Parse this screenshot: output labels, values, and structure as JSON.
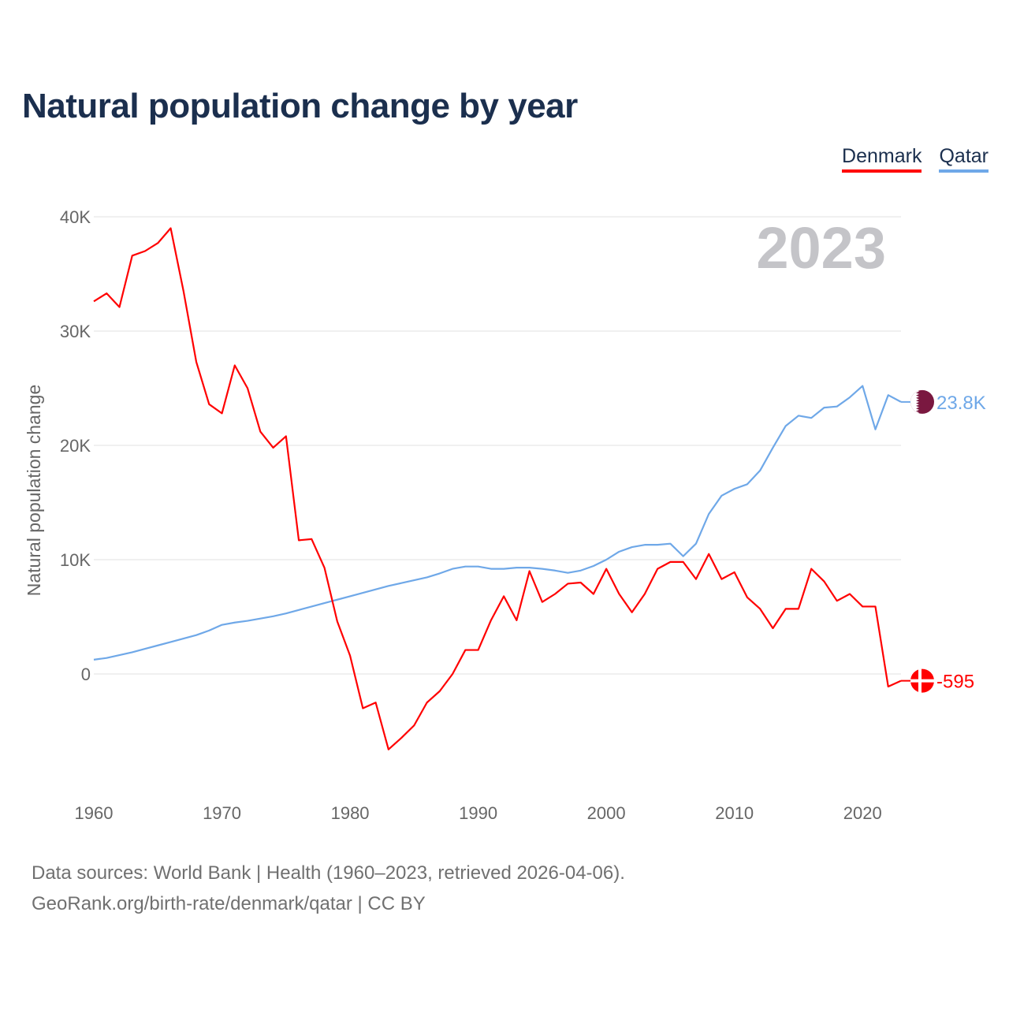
{
  "title": "Natural population change by year",
  "legend": [
    {
      "name": "Denmark",
      "color": "#ff0000"
    },
    {
      "name": "Qatar",
      "color": "#6fa8e8"
    }
  ],
  "year_watermark": "2023",
  "source": {
    "line1": "Data sources: World Bank | Health (1960–2023, retrieved 2026-04-06).",
    "line2": "GeoRank.org/birth-rate/denmark/qatar | CC BY"
  },
  "chart_data": {
    "type": "line",
    "title": "Natural population change by year",
    "xlabel": "",
    "ylabel": "Natural population change",
    "xlim": [
      1960,
      2023
    ],
    "ylim": [
      -10000,
      40000
    ],
    "x_ticks": [
      1960,
      1970,
      1980,
      1990,
      2000,
      2010,
      2020
    ],
    "x_tick_labels": [
      "1960",
      "1970",
      "1980",
      "1990",
      "2000",
      "2010",
      "2020"
    ],
    "y_ticks": [
      0,
      10000,
      20000,
      30000,
      40000
    ],
    "y_tick_labels": [
      "0",
      "10K",
      "20K",
      "30K",
      "40K"
    ],
    "grid": true,
    "legend_position": "top-right",
    "x": [
      1960,
      1961,
      1962,
      1963,
      1964,
      1965,
      1966,
      1967,
      1968,
      1969,
      1970,
      1971,
      1972,
      1973,
      1974,
      1975,
      1976,
      1977,
      1978,
      1979,
      1980,
      1981,
      1982,
      1983,
      1984,
      1985,
      1986,
      1987,
      1988,
      1989,
      1990,
      1991,
      1992,
      1993,
      1994,
      1995,
      1996,
      1997,
      1998,
      1999,
      2000,
      2001,
      2002,
      2003,
      2004,
      2005,
      2006,
      2007,
      2008,
      2009,
      2010,
      2011,
      2012,
      2013,
      2014,
      2015,
      2016,
      2017,
      2018,
      2019,
      2020,
      2021,
      2022,
      2023
    ],
    "series": [
      {
        "name": "Denmark",
        "color": "#ff0000",
        "end_label": "-595",
        "values": [
          32600,
          33300,
          32100,
          36600,
          37000,
          37700,
          39000,
          33500,
          27300,
          23600,
          22800,
          27000,
          25000,
          21200,
          19800,
          20800,
          11700,
          11800,
          9300,
          4600,
          1600,
          -3000,
          -2500,
          -6600,
          -5600,
          -4500,
          -2500,
          -1500,
          0,
          2100,
          2100,
          4700,
          6800,
          4700,
          9000,
          6300,
          7000,
          7900,
          8000,
          7000,
          9200,
          7000,
          5400,
          7000,
          9200,
          9800,
          9800,
          8300,
          10500,
          8300,
          8900,
          6700,
          5700,
          4000,
          5700,
          5700,
          9200,
          8100,
          6400,
          7000,
          5900,
          5900,
          -1100,
          -595
        ]
      },
      {
        "name": "Qatar",
        "color": "#6fa8e8",
        "end_label": "23.8K",
        "values": [
          1250,
          1400,
          1650,
          1900,
          2200,
          2500,
          2800,
          3100,
          3400,
          3800,
          4300,
          4500,
          4650,
          4850,
          5050,
          5300,
          5600,
          5900,
          6200,
          6500,
          6800,
          7100,
          7400,
          7700,
          7950,
          8200,
          8450,
          8800,
          9200,
          9400,
          9400,
          9200,
          9200,
          9300,
          9300,
          9200,
          9050,
          8850,
          9050,
          9450,
          10000,
          10700,
          11100,
          11300,
          11300,
          11400,
          10300,
          11400,
          14000,
          15600,
          16200,
          16600,
          17800,
          19800,
          21700,
          22600,
          22400,
          23300,
          23400,
          24200,
          25200,
          21400,
          24400,
          23800
        ]
      }
    ]
  }
}
